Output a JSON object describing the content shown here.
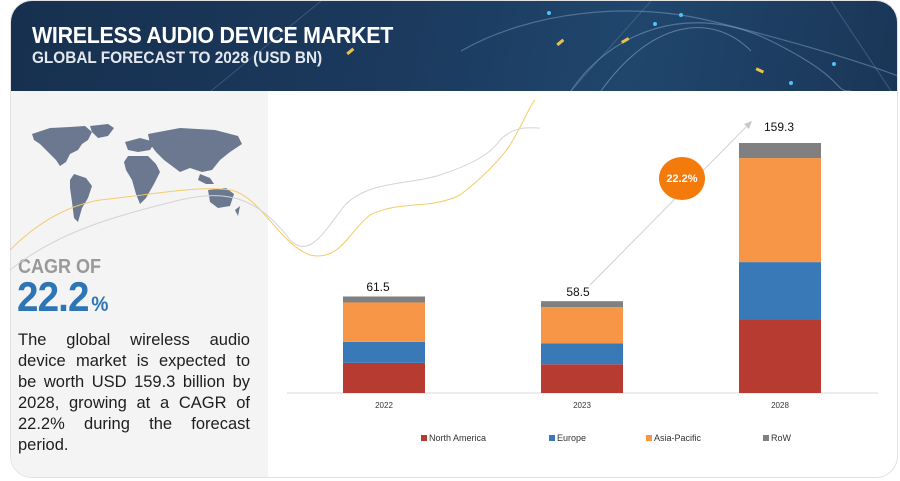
{
  "header": {
    "title": "WIRELESS AUDIO DEVICE MARKET",
    "subtitle": "GLOBAL FORECAST TO 2028 (USD BN)"
  },
  "summary": {
    "cagr_label": "CAGR OF",
    "cagr_value": "22.2",
    "cagr_unit": "%",
    "description": "The global wireless audio device market is expected to be worth USD 159.3 billion by 2028, growing at a CAGR of 22.2% during the forecast period."
  },
  "colors": {
    "north_america": "#b83b32",
    "europe": "#3a79b8",
    "asia_pacific": "#f79646",
    "row": "#808080",
    "cagr_bubble": "#f47a0c",
    "accent_blue": "#2e75b6"
  },
  "chart_data": {
    "type": "bar",
    "stacked": true,
    "title": "WIRELESS AUDIO DEVICE MARKET",
    "subtitle": "GLOBAL FORECAST TO 2028 (USD BN)",
    "categories": [
      "2022",
      "2023",
      "2028"
    ],
    "totals": [
      "61.5",
      "58.5",
      "159.3"
    ],
    "series": [
      {
        "name": "North America",
        "values": [
          19.2,
          18.3,
          47.1
        ]
      },
      {
        "name": "Europe",
        "values": [
          13.4,
          13.4,
          36.3
        ]
      },
      {
        "name": "Asia-Pacific",
        "values": [
          25.1,
          23.0,
          66.3
        ]
      },
      {
        "name": "RoW",
        "values": [
          3.8,
          3.8,
          9.6
        ]
      }
    ],
    "ylim": [
      0,
      159.3
    ],
    "annotation": "22.2%",
    "legend_position": "bottom",
    "grid": false
  }
}
